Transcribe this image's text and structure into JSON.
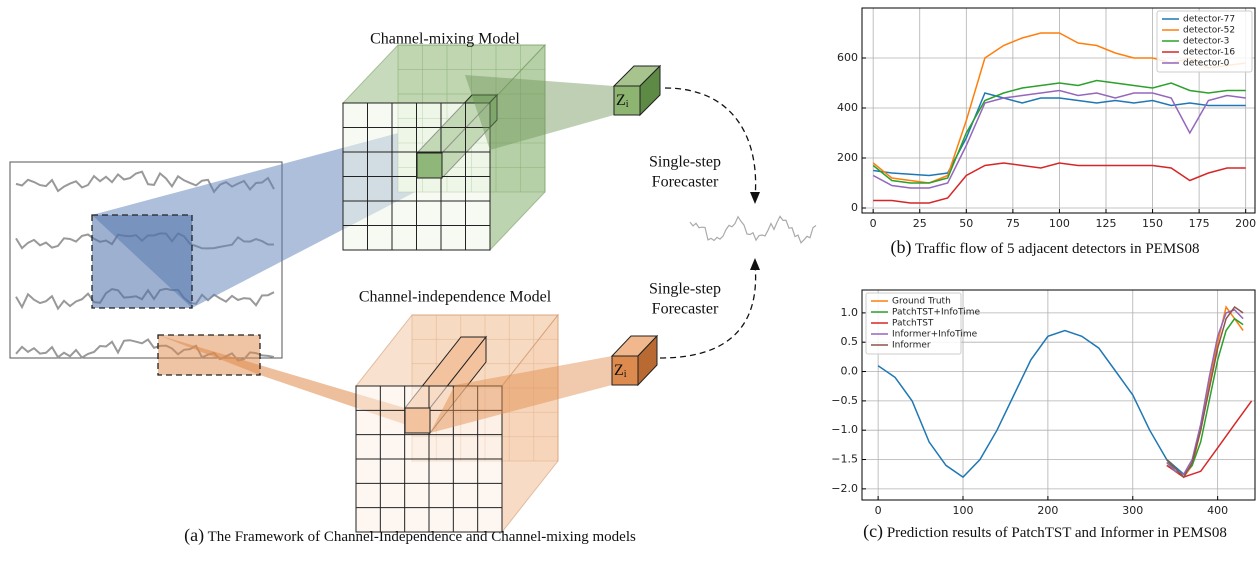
{
  "figure_a": {
    "mixing_title": "Channel-mixing Model",
    "independence_title": "Channel-independence Model",
    "forecaster_upper": [
      "Single-step",
      "Forecaster"
    ],
    "forecaster_lower": [
      "Single-step",
      "Forecaster"
    ],
    "z_upper": [
      "Z",
      "i"
    ],
    "z_lower": [
      "Z",
      "i"
    ],
    "caption_label": "(a)",
    "caption_text": "The Framework of Channel-Independence and Channel-mixing models"
  },
  "captions": [
    {
      "label": "(b)",
      "text": "Traffic flow of 5 adjacent detectors in PEMS08"
    },
    {
      "label": "(c)",
      "text": "Prediction results of PatchTST and Informer in PEMS08"
    }
  ],
  "chart_data": [
    {
      "type": "line",
      "x": [
        0,
        10,
        20,
        30,
        40,
        50,
        60,
        70,
        80,
        90,
        100,
        110,
        120,
        130,
        140,
        150,
        160,
        170,
        180,
        190,
        200
      ],
      "xlim": [
        -6,
        205
      ],
      "xticks": [
        0,
        25,
        50,
        75,
        100,
        125,
        150,
        175,
        200
      ],
      "ylim": [
        -20,
        800
      ],
      "yticks": [
        0,
        200,
        400,
        600
      ],
      "grid": true,
      "legend": "upper right",
      "series": [
        {
          "name": "detector-77",
          "color": "#1f77b4",
          "values": [
            150,
            140,
            135,
            130,
            140,
            280,
            460,
            440,
            420,
            440,
            440,
            430,
            420,
            430,
            420,
            430,
            410,
            420,
            410,
            410,
            410
          ]
        },
        {
          "name": "detector-52",
          "color": "#ff7f0e",
          "values": [
            180,
            120,
            110,
            100,
            130,
            350,
            600,
            650,
            680,
            700,
            700,
            660,
            650,
            620,
            600,
            600,
            580,
            600,
            560,
            570,
            580
          ]
        },
        {
          "name": "detector-3",
          "color": "#2ca02c",
          "values": [
            170,
            110,
            100,
            100,
            120,
            300,
            430,
            460,
            480,
            490,
            500,
            490,
            510,
            500,
            490,
            480,
            500,
            470,
            460,
            470,
            470
          ]
        },
        {
          "name": "detector-16",
          "color": "#d62728",
          "values": [
            30,
            30,
            20,
            20,
            40,
            130,
            170,
            180,
            170,
            160,
            180,
            170,
            170,
            170,
            170,
            170,
            160,
            110,
            140,
            160,
            160
          ]
        },
        {
          "name": "detector-0",
          "color": "#9467bd",
          "values": [
            130,
            90,
            80,
            80,
            100,
            250,
            420,
            440,
            450,
            460,
            470,
            450,
            460,
            440,
            460,
            460,
            440,
            300,
            430,
            450,
            440
          ]
        }
      ]
    },
    {
      "type": "line",
      "xlim": [
        -19,
        444
      ],
      "xticks": [
        0,
        100,
        200,
        300,
        400
      ],
      "ylim": [
        -2.19,
        1.39
      ],
      "yticks": [
        {
          "value": -2,
          "label": "−2.0"
        },
        {
          "value": -1.5,
          "label": "−1.5"
        },
        {
          "value": -1,
          "label": "−1.0"
        },
        {
          "value": -0.5,
          "label": "−0.5"
        },
        {
          "value": 0,
          "label": "0.0"
        },
        {
          "value": 0.5,
          "label": "0.5"
        },
        {
          "value": 1,
          "label": "1.0"
        }
      ],
      "grid": true,
      "legend": "upper left",
      "series": [
        {
          "color": "#1f77b4",
          "x": [
            0,
            20,
            40,
            60,
            80,
            100,
            120,
            140,
            160,
            180,
            200,
            220,
            240,
            260,
            280,
            300,
            320,
            340,
            360
          ],
          "values": [
            0.1,
            -0.1,
            -0.5,
            -1.2,
            -1.6,
            -1.8,
            -1.5,
            -1.0,
            -0.4,
            0.2,
            0.6,
            0.7,
            0.6,
            0.4,
            0.0,
            -0.4,
            -1.0,
            -1.5,
            -1.75
          ]
        },
        {
          "name": "Ground Truth",
          "color": "#ff7f0e",
          "x": [
            340,
            350,
            360,
            370,
            380,
            390,
            400,
            410,
            420,
            430
          ],
          "values": [
            -1.5,
            -1.7,
            -1.8,
            -1.6,
            -1.0,
            -0.2,
            0.5,
            1.1,
            0.9,
            0.7
          ]
        },
        {
          "name": "PatchTST+InfoTime",
          "color": "#2ca02c",
          "x": [
            340,
            350,
            360,
            370,
            380,
            390,
            400,
            410,
            420,
            430
          ],
          "values": [
            -1.5,
            -1.7,
            -1.75,
            -1.6,
            -1.2,
            -0.5,
            0.2,
            0.7,
            0.9,
            0.8
          ]
        },
        {
          "name": "PatchTST",
          "color": "#d62728",
          "x": [
            340,
            360,
            380,
            400,
            420,
            440
          ],
          "values": [
            -1.6,
            -1.8,
            -1.7,
            -1.3,
            -0.9,
            -0.5
          ]
        },
        {
          "name": "Informer+InfoTime",
          "color": "#9467bd",
          "x": [
            340,
            350,
            360,
            370,
            380,
            390,
            400,
            410,
            420,
            430
          ],
          "values": [
            -1.55,
            -1.7,
            -1.75,
            -1.5,
            -0.9,
            -0.1,
            0.6,
            1.0,
            1.05,
            0.9
          ]
        },
        {
          "name": "Informer",
          "color": "#8c564b",
          "x": [
            340,
            350,
            360,
            370,
            380,
            390,
            400,
            410,
            420,
            430
          ],
          "values": [
            -1.5,
            -1.65,
            -1.8,
            -1.55,
            -1.0,
            -0.3,
            0.4,
            0.9,
            1.1,
            1.0
          ]
        }
      ]
    }
  ]
}
